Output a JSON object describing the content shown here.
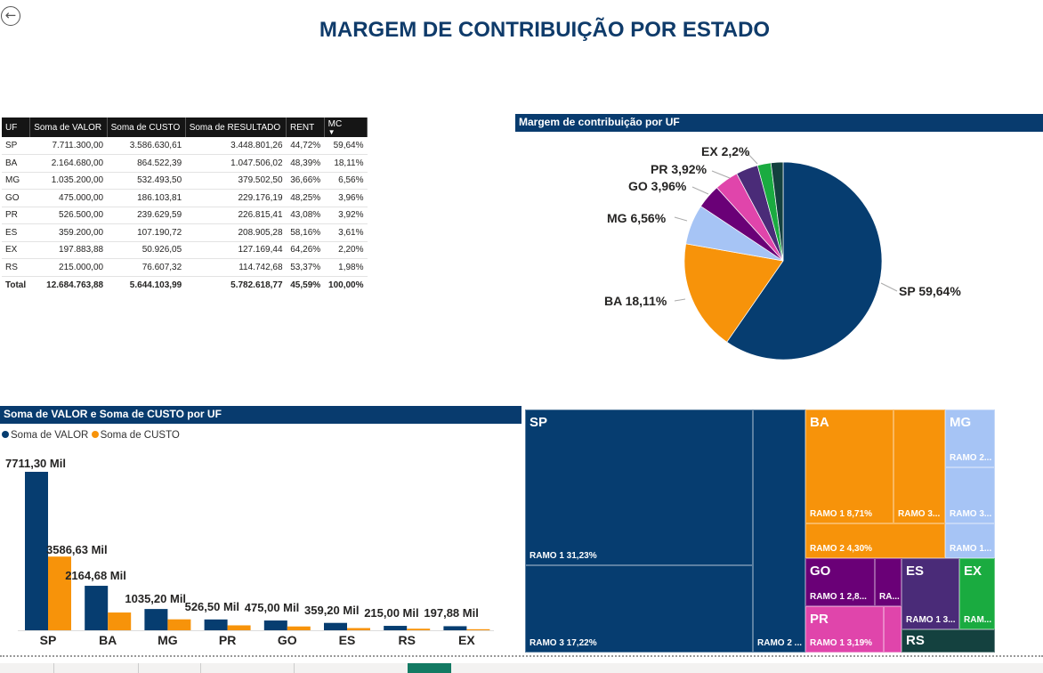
{
  "title": "MARGEM DE CONTRIBUIÇÃO POR ESTADO",
  "back_icon": "arrow-left-circle-icon",
  "table": {
    "columns": [
      "UF",
      "Soma de VALOR",
      "Soma de CUSTO",
      "Soma de RESULTADO",
      "RENT",
      "MC"
    ],
    "sort_column": "MC",
    "sort_icon": "sort-desc-icon",
    "rows": [
      [
        "SP",
        "7.711.300,00",
        "3.586.630,61",
        "3.448.801,26",
        "44,72%",
        "59,64%"
      ],
      [
        "BA",
        "2.164.680,00",
        "864.522,39",
        "1.047.506,02",
        "48,39%",
        "18,11%"
      ],
      [
        "MG",
        "1.035.200,00",
        "532.493,50",
        "379.502,50",
        "36,66%",
        "6,56%"
      ],
      [
        "GO",
        "475.000,00",
        "186.103,81",
        "229.176,19",
        "48,25%",
        "3,96%"
      ],
      [
        "PR",
        "526.500,00",
        "239.629,59",
        "226.815,41",
        "43,08%",
        "3,92%"
      ],
      [
        "ES",
        "359.200,00",
        "107.190,72",
        "208.905,28",
        "58,16%",
        "3,61%"
      ],
      [
        "EX",
        "197.883,88",
        "50.926,05",
        "127.169,44",
        "64,26%",
        "2,20%"
      ],
      [
        "RS",
        "215.000,00",
        "76.607,32",
        "114.742,68",
        "53,37%",
        "1,98%"
      ]
    ],
    "total": [
      "Total",
      "12.684.763,88",
      "5.644.103,99",
      "5.782.618,77",
      "45,59%",
      "100,00%"
    ]
  },
  "colors": {
    "SP": "#063d70",
    "BA": "#f7930a",
    "MG": "#a6c4f5",
    "GO": "#6a0077",
    "PR": "#e045ab",
    "ES": "#4a2b78",
    "EX": "#1aab40",
    "RS": "#14413f"
  },
  "chart_data": [
    {
      "type": "pie",
      "title": "Margem de contribuição por UF",
      "categories": [
        "SP",
        "BA",
        "MG",
        "GO",
        "PR",
        "ES",
        "EX",
        "RS"
      ],
      "values": [
        59.64,
        18.11,
        6.56,
        3.96,
        3.92,
        3.61,
        2.2,
        1.98
      ],
      "labels": {
        "SP": "SP 59,64%",
        "BA": "BA 18,11%",
        "MG": "MG 6,56%",
        "GO": "GO 3,96%",
        "PR": "PR 3,92%",
        "EX": "EX 2,2%"
      }
    },
    {
      "type": "bar",
      "title": "Soma de VALOR e Soma de CUSTO por UF",
      "legend": "top-left",
      "categories": [
        "SP",
        "BA",
        "MG",
        "PR",
        "GO",
        "ES",
        "RS",
        "EX"
      ],
      "series": [
        {
          "name": "Soma de VALOR",
          "color": "#063d70",
          "values": [
            7711.3,
            2164.68,
            1035.2,
            526.5,
            475.0,
            359.2,
            215.0,
            197.88
          ],
          "labels": [
            "7711,30 Mil",
            "2164,68 Mil",
            "1035,20 Mil",
            "526,50 Mil",
            "475,00 Mil",
            "359,20 Mil",
            "215,00 Mil",
            "197,88 Mil"
          ]
        },
        {
          "name": "Soma de CUSTO",
          "color": "#f7930a",
          "values": [
            3586.63,
            864.52,
            532.49,
            239.63,
            186.1,
            107.19,
            76.61,
            50.93
          ],
          "labels": [
            "3586,63 Mil",
            "",
            "",
            "",
            "",
            "",
            "",
            ""
          ]
        }
      ],
      "ylim": [
        0,
        7711.3
      ]
    },
    {
      "type": "treemap",
      "groups": [
        "SP",
        "BA",
        "MG",
        "GO",
        "PR",
        "ES",
        "EX",
        "RS"
      ],
      "tiles": {
        "sp_r1": "RAMO 1 31,23%",
        "sp_r3": "RAMO 3 17,22%",
        "sp_r2": "RAMO 2 ...",
        "ba_r1": "RAMO 1 8,71%",
        "ba_r3": "RAMO 3...",
        "ba_r2": "RAMO 2 4,30%",
        "mg_r2": "RAMO 2...",
        "mg_r3": "RAMO 3...",
        "mg_r1": "RAMO 1...",
        "go_r1": "RAMO 1 2,8...",
        "go_ra": "RA...",
        "pr_r1": "RAMO 1 3,19%",
        "es_r1": "RAMO 1 3...",
        "ex_r": "RAM..."
      }
    }
  ]
}
